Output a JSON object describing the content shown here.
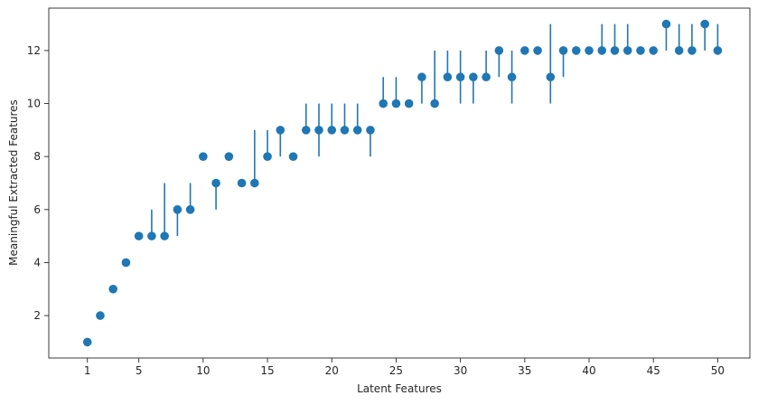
{
  "chart_data": {
    "type": "scatter",
    "title": "",
    "xlabel": "Latent Features",
    "ylabel": "Meaningful Extracted Features",
    "xlim": [
      -2,
      52.5
    ],
    "ylim": [
      0.4,
      13.6
    ],
    "xticks": [
      1,
      5,
      10,
      15,
      20,
      25,
      30,
      35,
      40,
      45,
      50
    ],
    "yticks": [
      2,
      4,
      6,
      8,
      10,
      12
    ],
    "grid": false,
    "legend": "none",
    "color": "#1f77b4",
    "series": [
      {
        "x": [
          1,
          2,
          3,
          4,
          5,
          6,
          7,
          8,
          9,
          10,
          11,
          12,
          13,
          14,
          15,
          16,
          17,
          18,
          19,
          20,
          21,
          22,
          23,
          24,
          25,
          26,
          27,
          28,
          29,
          30,
          31,
          32,
          33,
          34,
          35,
          36,
          37,
          38,
          39,
          40,
          41,
          42,
          43,
          44,
          45,
          46,
          47,
          48,
          49,
          50
        ],
        "y": [
          1,
          2,
          3,
          4,
          5,
          5,
          5,
          6,
          6,
          8,
          7,
          8,
          7,
          7,
          8,
          9,
          8,
          9,
          9,
          9,
          9,
          9,
          9,
          10,
          10,
          10,
          11,
          10,
          11,
          11,
          11,
          11,
          12,
          11,
          12,
          12,
          11,
          12,
          12,
          12,
          12,
          12,
          12,
          12,
          12,
          13,
          12,
          12,
          13,
          12
        ],
        "y_low": [
          1,
          2,
          3,
          4,
          5,
          5,
          5,
          5,
          6,
          8,
          6,
          8,
          7,
          7,
          8,
          8,
          8,
          9,
          8,
          9,
          9,
          9,
          8,
          10,
          10,
          10,
          10,
          10,
          11,
          10,
          10,
          11,
          11,
          10,
          12,
          12,
          10,
          11,
          12,
          12,
          12,
          12,
          12,
          12,
          12,
          12,
          12,
          12,
          12,
          12
        ],
        "y_high": [
          1,
          2,
          3,
          4,
          5,
          6,
          7,
          6,
          7,
          8,
          7,
          8,
          7,
          9,
          9,
          9,
          8,
          10,
          10,
          10,
          10,
          10,
          9,
          11,
          11,
          10,
          11,
          12,
          12,
          12,
          11,
          12,
          12,
          12,
          12,
          12,
          13,
          12,
          12,
          12,
          13,
          13,
          13,
          12,
          12,
          13,
          13,
          13,
          13,
          13
        ]
      }
    ]
  }
}
